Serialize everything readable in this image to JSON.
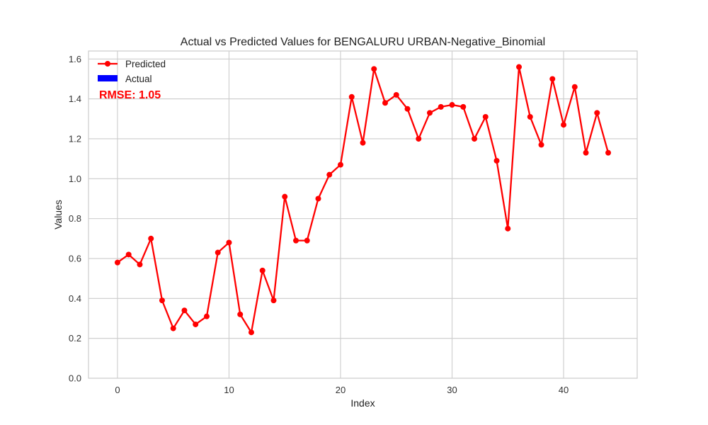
{
  "chart_data": {
    "type": "line",
    "title": "Actual vs Predicted Values for BENGALURU URBAN-Negative_Binomial",
    "xlabel": "Index",
    "ylabel": "Values",
    "xlim": [
      -2.6,
      46.6
    ],
    "ylim": [
      0.0,
      1.64
    ],
    "xticks": [
      0,
      10,
      20,
      30,
      40
    ],
    "yticks": [
      0.0,
      0.2,
      0.4,
      0.6,
      0.8,
      1.0,
      1.2,
      1.4,
      1.6
    ],
    "xtick_labels": [
      "0",
      "10",
      "20",
      "30",
      "40"
    ],
    "ytick_labels": [
      "0.0",
      "0.2",
      "0.4",
      "0.6",
      "0.8",
      "1.0",
      "1.2",
      "1.4",
      "1.6"
    ],
    "grid": true,
    "legend_position": "top-left",
    "annotation": "RMSE: 1.05",
    "annotation_color": "#ff0000",
    "series": [
      {
        "name": "Predicted",
        "color": "#ff0000",
        "marker": "circle",
        "x": [
          0,
          1,
          2,
          3,
          4,
          5,
          6,
          7,
          8,
          9,
          10,
          11,
          12,
          13,
          14,
          15,
          16,
          17,
          18,
          19,
          20,
          21,
          22,
          23,
          24,
          25,
          26,
          27,
          28,
          29,
          30,
          31,
          32,
          33,
          34,
          35,
          36,
          37,
          38,
          39,
          40,
          41,
          42,
          43,
          44
        ],
        "values": [
          0.58,
          0.62,
          0.57,
          0.7,
          0.39,
          0.25,
          0.34,
          0.27,
          0.31,
          0.63,
          0.68,
          0.32,
          0.23,
          0.54,
          0.39,
          0.91,
          0.69,
          0.69,
          0.9,
          1.02,
          1.07,
          1.41,
          1.18,
          1.55,
          1.38,
          1.42,
          1.35,
          1.2,
          1.33,
          1.36,
          1.37,
          1.36,
          1.2,
          1.31,
          1.09,
          0.75,
          1.56,
          1.31,
          1.17,
          1.5,
          1.27,
          1.46,
          1.13,
          1.33,
          1.13
        ]
      },
      {
        "name": "Actual",
        "color": "#0000ff",
        "marker": "bar",
        "x": [],
        "values": []
      }
    ]
  }
}
